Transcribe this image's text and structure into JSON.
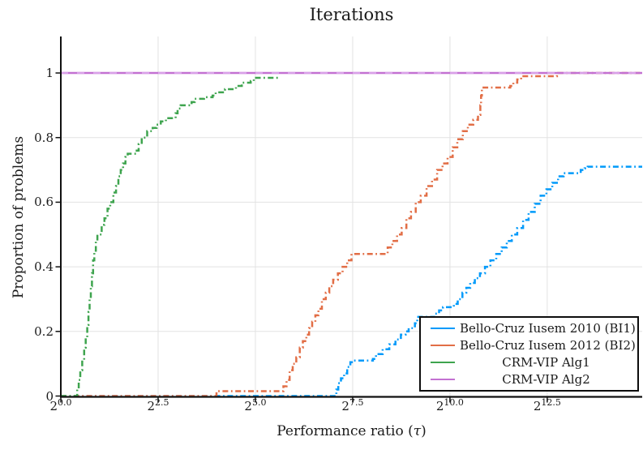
{
  "chart_data": {
    "type": "line",
    "subtype": "performance-profile-step",
    "title": "Iterations",
    "xlabel_prefix": "Performance ratio (",
    "xlabel_tau": "τ",
    "xlabel_suffix": ")",
    "xlabel": "Performance ratio (τ)",
    "ylabel": "Proportion of problems",
    "x_scale": "log2",
    "xlim_log2": [
      0,
      14.94
    ],
    "ylim": [
      0,
      1.113
    ],
    "grid": true,
    "grid_color": "#e2e2e2",
    "axis_color": "#111111",
    "x_ticks": [
      {
        "t": 0.0,
        "base": "2",
        "exp": "0.0"
      },
      {
        "t": 2.5,
        "base": "2",
        "exp": "2.5"
      },
      {
        "t": 5.0,
        "base": "2",
        "exp": "5.0"
      },
      {
        "t": 7.5,
        "base": "2",
        "exp": "7.5"
      },
      {
        "t": 10.0,
        "base": "2",
        "exp": "10.0"
      },
      {
        "t": 12.5,
        "base": "2",
        "exp": "12.5"
      }
    ],
    "y_ticks": [
      {
        "p": 0.0,
        "label": "0"
      },
      {
        "p": 0.2,
        "label": "0.2"
      },
      {
        "p": 0.4,
        "label": "0.4"
      },
      {
        "p": 0.6,
        "label": "0.6"
      },
      {
        "p": 0.8,
        "label": "0.8"
      },
      {
        "p": 1.0,
        "label": "1"
      }
    ],
    "legend_position": "bottom-right",
    "series": [
      {
        "name": "Bello-Cruz Iusem 2010 (BI1)",
        "color": "#009AFA",
        "linestyle": "dashdot",
        "final_value": 0.71,
        "points": [
          [
            0,
            0
          ],
          [
            7.08,
            0.02
          ],
          [
            7.13,
            0.04
          ],
          [
            7.2,
            0.055
          ],
          [
            7.28,
            0.07
          ],
          [
            7.36,
            0.09
          ],
          [
            7.44,
            0.105
          ],
          [
            7.52,
            0.11
          ],
          [
            8.02,
            0.115
          ],
          [
            8.1,
            0.13
          ],
          [
            8.27,
            0.145
          ],
          [
            8.44,
            0.16
          ],
          [
            8.6,
            0.175
          ],
          [
            8.74,
            0.19
          ],
          [
            8.86,
            0.2
          ],
          [
            8.94,
            0.21
          ],
          [
            9.1,
            0.225
          ],
          [
            9.16,
            0.245
          ],
          [
            9.62,
            0.255
          ],
          [
            9.72,
            0.265
          ],
          [
            9.82,
            0.275
          ],
          [
            10.1,
            0.285
          ],
          [
            10.2,
            0.3
          ],
          [
            10.32,
            0.32
          ],
          [
            10.42,
            0.335
          ],
          [
            10.52,
            0.35
          ],
          [
            10.64,
            0.365
          ],
          [
            10.77,
            0.38
          ],
          [
            10.9,
            0.4
          ],
          [
            11.04,
            0.42
          ],
          [
            11.19,
            0.44
          ],
          [
            11.33,
            0.46
          ],
          [
            11.46,
            0.48
          ],
          [
            11.59,
            0.5
          ],
          [
            11.73,
            0.52
          ],
          [
            11.88,
            0.545
          ],
          [
            12.02,
            0.57
          ],
          [
            12.18,
            0.595
          ],
          [
            12.33,
            0.62
          ],
          [
            12.48,
            0.64
          ],
          [
            12.63,
            0.66
          ],
          [
            12.78,
            0.68
          ],
          [
            12.92,
            0.69
          ],
          [
            13.36,
            0.7
          ],
          [
            13.46,
            0.705
          ],
          [
            13.54,
            0.71
          ],
          [
            14.94,
            0.71
          ]
        ]
      },
      {
        "name": "Bello-Cruz Iusem 2012 (BI2)",
        "color": "#E26E46",
        "linestyle": "dashdot",
        "final_value": 1.0,
        "points": [
          [
            0,
            0
          ],
          [
            4.0,
            0.015
          ],
          [
            5.65,
            0.015
          ],
          [
            5.72,
            0.03
          ],
          [
            5.8,
            0.05
          ],
          [
            5.88,
            0.08
          ],
          [
            5.96,
            0.1
          ],
          [
            6.05,
            0.12
          ],
          [
            6.14,
            0.15
          ],
          [
            6.22,
            0.17
          ],
          [
            6.31,
            0.19
          ],
          [
            6.38,
            0.21
          ],
          [
            6.46,
            0.23
          ],
          [
            6.54,
            0.25
          ],
          [
            6.62,
            0.27
          ],
          [
            6.71,
            0.3
          ],
          [
            6.81,
            0.32
          ],
          [
            6.9,
            0.34
          ],
          [
            7.0,
            0.36
          ],
          [
            7.12,
            0.38
          ],
          [
            7.24,
            0.4
          ],
          [
            7.36,
            0.42
          ],
          [
            7.47,
            0.44
          ],
          [
            8.3,
            0.44
          ],
          [
            8.4,
            0.46
          ],
          [
            8.52,
            0.48
          ],
          [
            8.64,
            0.5
          ],
          [
            8.76,
            0.52
          ],
          [
            8.88,
            0.55
          ],
          [
            9.0,
            0.57
          ],
          [
            9.12,
            0.6
          ],
          [
            9.25,
            0.62
          ],
          [
            9.4,
            0.65
          ],
          [
            9.54,
            0.67
          ],
          [
            9.67,
            0.7
          ],
          [
            9.81,
            0.72
          ],
          [
            9.94,
            0.74
          ],
          [
            10.07,
            0.77
          ],
          [
            10.19,
            0.795
          ],
          [
            10.33,
            0.82
          ],
          [
            10.46,
            0.84
          ],
          [
            10.6,
            0.855
          ],
          [
            10.72,
            0.87
          ],
          [
            10.78,
            0.9
          ],
          [
            10.8,
            0.93
          ],
          [
            10.82,
            0.955
          ],
          [
            11.55,
            0.96
          ],
          [
            11.63,
            0.97
          ],
          [
            11.73,
            0.98
          ],
          [
            11.83,
            0.99
          ],
          [
            12.75,
            0.995
          ],
          [
            12.78,
            1.0
          ],
          [
            14.94,
            1.0
          ]
        ]
      },
      {
        "name": "CRM-VIP Alg1",
        "color": "#3EA44E",
        "linestyle": "dashdot",
        "final_value": 0.985,
        "points": [
          [
            0,
            0
          ],
          [
            0.42,
            0.02
          ],
          [
            0.46,
            0.05
          ],
          [
            0.5,
            0.08
          ],
          [
            0.55,
            0.11
          ],
          [
            0.6,
            0.15
          ],
          [
            0.64,
            0.18
          ],
          [
            0.68,
            0.22
          ],
          [
            0.71,
            0.26
          ],
          [
            0.74,
            0.3
          ],
          [
            0.77,
            0.34
          ],
          [
            0.8,
            0.38
          ],
          [
            0.83,
            0.42
          ],
          [
            0.86,
            0.45
          ],
          [
            0.9,
            0.48
          ],
          [
            0.94,
            0.5
          ],
          [
            1.05,
            0.53
          ],
          [
            1.12,
            0.55
          ],
          [
            1.2,
            0.58
          ],
          [
            1.27,
            0.6
          ],
          [
            1.35,
            0.63
          ],
          [
            1.42,
            0.65
          ],
          [
            1.48,
            0.68
          ],
          [
            1.54,
            0.7
          ],
          [
            1.6,
            0.72
          ],
          [
            1.66,
            0.74
          ],
          [
            1.72,
            0.75
          ],
          [
            1.95,
            0.76
          ],
          [
            2.0,
            0.78
          ],
          [
            2.08,
            0.8
          ],
          [
            2.22,
            0.82
          ],
          [
            2.36,
            0.83
          ],
          [
            2.46,
            0.84
          ],
          [
            2.57,
            0.85
          ],
          [
            2.7,
            0.86
          ],
          [
            2.95,
            0.875
          ],
          [
            3.0,
            0.89
          ],
          [
            3.08,
            0.9
          ],
          [
            3.36,
            0.91
          ],
          [
            3.44,
            0.92
          ],
          [
            3.68,
            0.925
          ],
          [
            3.9,
            0.93
          ],
          [
            3.98,
            0.94
          ],
          [
            4.22,
            0.95
          ],
          [
            4.5,
            0.96
          ],
          [
            4.65,
            0.97
          ],
          [
            4.88,
            0.975
          ],
          [
            4.96,
            0.985
          ],
          [
            5.6,
            0.985
          ]
        ]
      },
      {
        "name": "CRM-VIP Alg2",
        "color": "#C371D2",
        "linestyle": "solid",
        "texture_color": "#d9a0e8",
        "final_value": 1.0,
        "points": [
          [
            0,
            1.0
          ],
          [
            14.94,
            1.0
          ]
        ]
      }
    ]
  }
}
